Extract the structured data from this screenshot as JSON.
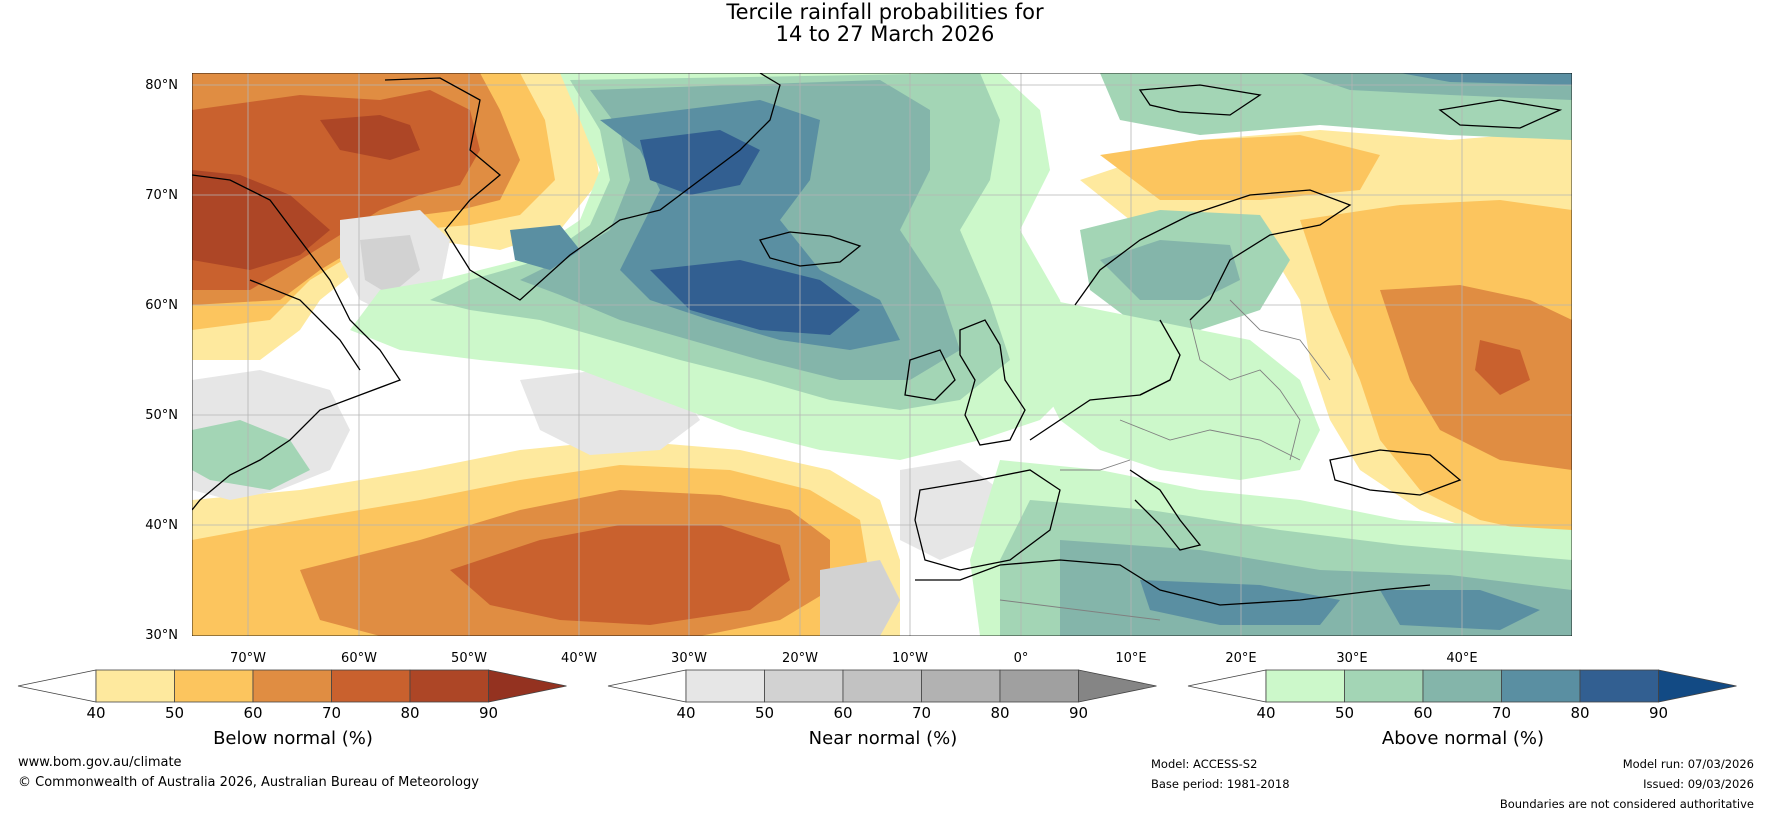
{
  "title": {
    "line1": "Tercile rainfall probabilities for",
    "line2": "14 to 27 March 2026"
  },
  "map": {
    "lat_labels": [
      "80°N",
      "70°N",
      "60°N",
      "50°N",
      "40°N",
      "30°N"
    ],
    "lon_labels": [
      "70°W",
      "60°W",
      "50°W",
      "40°W",
      "30°W",
      "20°W",
      "10°W",
      "0°",
      "10°E",
      "20°E",
      "30°E",
      "40°E"
    ]
  },
  "colorbars": [
    {
      "label": "Below normal (%)",
      "ticks": [
        "40",
        "50",
        "60",
        "70",
        "80",
        "90"
      ],
      "colors": [
        "#ffffff",
        "#fee99e",
        "#fcc55e",
        "#e08d42",
        "#c9612e",
        "#ad4626",
        "#943220"
      ]
    },
    {
      "label": "Near normal (%)",
      "ticks": [
        "40",
        "50",
        "60",
        "70",
        "80",
        "90"
      ],
      "colors": [
        "#ffffff",
        "#e6e6e6",
        "#d2d2d2",
        "#c2c2c2",
        "#b2b2b2",
        "#a0a0a0",
        "#858585"
      ]
    },
    {
      "label": "Above normal (%)",
      "ticks": [
        "40",
        "50",
        "60",
        "70",
        "80",
        "90"
      ],
      "colors": [
        "#ffffff",
        "#ccf8ca",
        "#a3d5b5",
        "#84b5aa",
        "#5a8fa2",
        "#325f91",
        "#124a84"
      ]
    }
  ],
  "footer": {
    "site": "www.bom.gov.au/climate",
    "copyright": "© Commonwealth of Australia 2026, Australian Bureau of Meteorology",
    "model": "Model: ACCESS-S2",
    "base_period": "Base period: 1981-2018",
    "model_run": "Model run: 07/03/2026",
    "issued": "Issued: 09/03/2026",
    "disclaimer": "Boundaries are not considered authoritative"
  }
}
